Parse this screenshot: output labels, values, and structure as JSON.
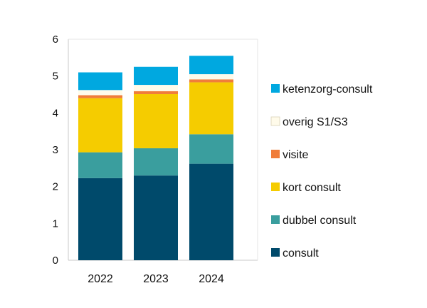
{
  "chart_data": {
    "type": "bar",
    "stacked": true,
    "title": "",
    "xlabel": "",
    "ylabel": "",
    "categories": [
      "2022",
      "2023",
      "2024"
    ],
    "ylim": [
      0,
      6
    ],
    "yticks": [
      "0",
      "1",
      "2",
      "3",
      "4",
      "5",
      "6"
    ],
    "grid": false,
    "legend_position": "right",
    "series": [
      {
        "name": "consult",
        "color": "#004A6B",
        "values": [
          2.23,
          2.3,
          2.62
        ]
      },
      {
        "name": "dubbel consult",
        "color": "#3A9E9E",
        "values": [
          0.7,
          0.74,
          0.8
        ]
      },
      {
        "name": "kort consult",
        "color": "#F5CC00",
        "values": [
          1.47,
          1.47,
          1.41
        ]
      },
      {
        "name": "visite",
        "color": "#F07D3A",
        "values": [
          0.08,
          0.08,
          0.08
        ]
      },
      {
        "name": "overig S1/S3",
        "color": "#FFFBEA",
        "values": [
          0.14,
          0.17,
          0.14
        ]
      },
      {
        "name": "ketenzorg-consult",
        "color": "#00A8E0",
        "values": [
          0.48,
          0.49,
          0.5
        ]
      }
    ]
  }
}
